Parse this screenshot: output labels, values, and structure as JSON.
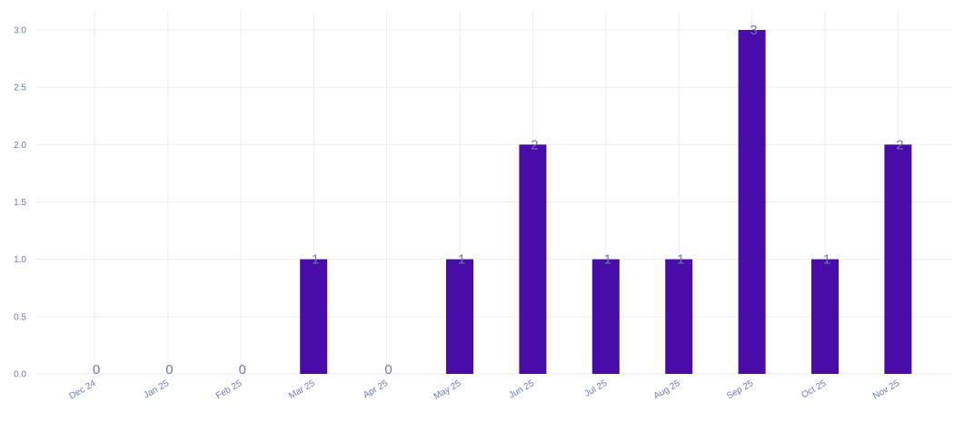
{
  "colors": {
    "bar": "#480ca8",
    "grid": "#eeeeee",
    "tick_text": "#7178ac",
    "data_label_text": "#7178ac",
    "background": "#ffffff"
  },
  "chart_data": {
    "type": "bar",
    "categories": [
      "Dec 24",
      "Jan 25",
      "Feb 25",
      "Mar 25",
      "Apr 25",
      "May 25",
      "Jun 25",
      "Jul 25",
      "Aug 25",
      "Sep 25",
      "Oct 25",
      "Nov 25"
    ],
    "values": [
      0,
      0,
      0,
      1,
      0,
      1,
      2,
      1,
      1,
      3,
      1,
      2
    ],
    "data_labels": [
      "0",
      "0",
      "0",
      "1",
      "0",
      "1",
      "2",
      "1",
      "1",
      "3",
      "1",
      "2"
    ],
    "yticks": [
      "0.0",
      "0.5",
      "1.0",
      "1.5",
      "2.0",
      "2.5",
      "3.0"
    ],
    "ylim": [
      0,
      3
    ],
    "grid": true,
    "legend": "none"
  }
}
